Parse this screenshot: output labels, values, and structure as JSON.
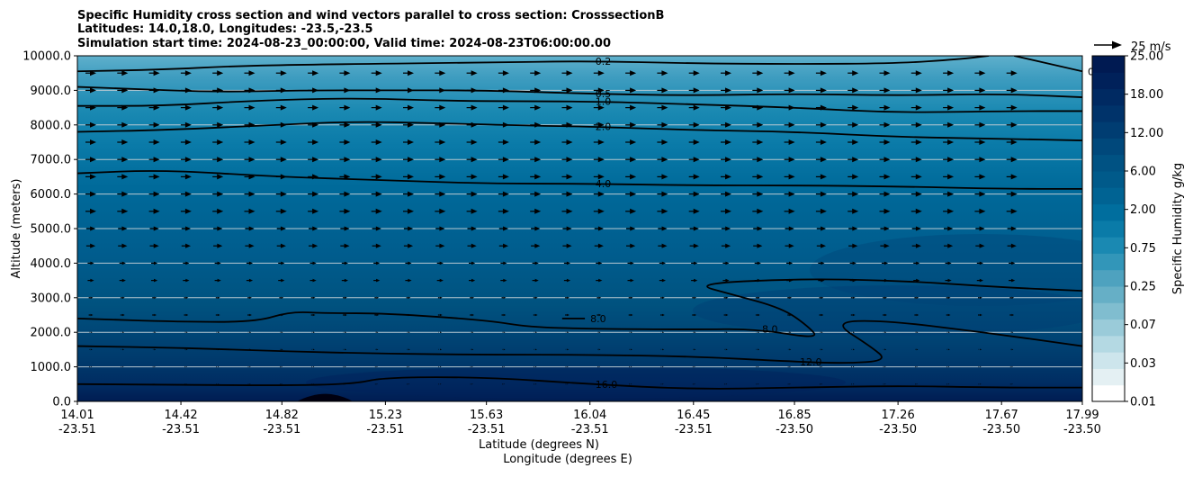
{
  "chart_data": {
    "type": "contour",
    "title_lines": [
      "Specific Humidity cross section and wind vectors parallel to cross section: CrosssectionB",
      "Latitudes: 14.0,18.0, Longitudes: -23.5,-23.5",
      "Simulation start time: 2024-08-23_00:00:00, Valid time: 2024-08-23T06:00:00.00"
    ],
    "ylabel": "Altitude (meters)",
    "xlabel_lines": [
      "Latitude (degrees N)",
      "Longitude (degrees E)"
    ],
    "ylim": [
      0,
      10000
    ],
    "yticks": [
      0,
      1000,
      2000,
      3000,
      4000,
      5000,
      6000,
      7000,
      8000,
      9000,
      10000
    ],
    "ytick_labels": [
      "0.0",
      "1000.0",
      "2000.0",
      "3000.0",
      "4000.0",
      "5000.0",
      "6000.0",
      "7000.0",
      "8000.0",
      "9000.0",
      "10000.0"
    ],
    "xlim": [
      14.01,
      17.99
    ],
    "xticks": [
      {
        "lat": "14.01",
        "lon": "-23.51"
      },
      {
        "lat": "14.42",
        "lon": "-23.51"
      },
      {
        "lat": "14.82",
        "lon": "-23.51"
      },
      {
        "lat": "15.23",
        "lon": "-23.51"
      },
      {
        "lat": "15.63",
        "lon": "-23.51"
      },
      {
        "lat": "16.04",
        "lon": "-23.51"
      },
      {
        "lat": "16.45",
        "lon": "-23.51"
      },
      {
        "lat": "16.85",
        "lon": "-23.50"
      },
      {
        "lat": "17.26",
        "lon": "-23.50"
      },
      {
        "lat": "17.67",
        "lon": "-23.50"
      },
      {
        "lat": "17.99",
        "lon": "-23.50"
      }
    ],
    "grid": "horizontal",
    "colorbar": {
      "label": "Specific Humidity g/kg",
      "tick_labels": [
        "0.01",
        "0.03",
        "0.07",
        "0.25",
        "0.75",
        "2.00",
        "6.00",
        "12.00",
        "18.00",
        "25.00"
      ],
      "colors": [
        "#ffffff",
        "#e4f0f3",
        "#cde5ec",
        "#b4d9e3",
        "#9acbd9",
        "#80bdcf",
        "#66afc6",
        "#4ea2bf",
        "#3296b9",
        "#1a89b2",
        "#0a7ba8",
        "#006e9e",
        "#006393",
        "#005a8a",
        "#005283",
        "#00487b",
        "#003d72",
        "#00336a",
        "#002a62",
        "#00215a",
        "#001a52"
      ]
    },
    "quiver_key": {
      "label": "25 m/s",
      "speed": 25
    },
    "contour_levels": [
      {
        "label": "0.2",
        "points": [
          [
            14.01,
            9550
          ],
          [
            14.35,
            9600
          ],
          [
            14.62,
            9700
          ],
          [
            14.95,
            9750
          ],
          [
            15.6,
            9800
          ],
          [
            16.04,
            9850
          ],
          [
            16.45,
            9780
          ],
          [
            16.85,
            9760
          ],
          [
            17.26,
            9780
          ],
          [
            17.5,
            9900
          ],
          [
            17.62,
            10000
          ]
        ]
      },
      {
        "label": "0.2",
        "points": [
          [
            17.72,
            10000
          ],
          [
            17.99,
            9550
          ]
        ]
      },
      {
        "label": "0.5",
        "points": [
          [
            14.01,
            9100
          ],
          [
            14.2,
            9050
          ],
          [
            14.55,
            8950
          ],
          [
            14.9,
            9000
          ],
          [
            15.3,
            9000
          ],
          [
            15.63,
            9000
          ],
          [
            16.04,
            8900
          ],
          [
            16.45,
            8850
          ],
          [
            16.85,
            8900
          ],
          [
            17.26,
            8850
          ],
          [
            17.67,
            8900
          ],
          [
            17.99,
            8800
          ]
        ]
      },
      {
        "label": "1.0",
        "points": [
          [
            14.01,
            8550
          ],
          [
            14.35,
            8550
          ],
          [
            14.7,
            8700
          ],
          [
            15.1,
            8780
          ],
          [
            15.45,
            8700
          ],
          [
            15.8,
            8680
          ],
          [
            16.04,
            8680
          ],
          [
            16.45,
            8600
          ],
          [
            16.85,
            8500
          ],
          [
            17.26,
            8350
          ],
          [
            17.67,
            8400
          ],
          [
            17.99,
            8400
          ]
        ]
      },
      {
        "label": "2.0",
        "points": [
          [
            14.01,
            7800
          ],
          [
            14.35,
            7850
          ],
          [
            14.8,
            8000
          ],
          [
            15.1,
            8100
          ],
          [
            15.45,
            8050
          ],
          [
            15.8,
            7980
          ],
          [
            16.04,
            7950
          ],
          [
            16.45,
            7850
          ],
          [
            16.85,
            7800
          ],
          [
            17.26,
            7650
          ],
          [
            17.67,
            7600
          ],
          [
            17.99,
            7550
          ]
        ]
      },
      {
        "label": "4.0",
        "points": [
          [
            14.01,
            6600
          ],
          [
            14.35,
            6700
          ],
          [
            14.8,
            6500
          ],
          [
            15.23,
            6400
          ],
          [
            15.63,
            6300
          ],
          [
            16.04,
            6300
          ],
          [
            16.45,
            6250
          ],
          [
            16.85,
            6250
          ],
          [
            17.26,
            6220
          ],
          [
            17.67,
            6150
          ],
          [
            17.99,
            6150
          ]
        ]
      },
      {
        "label": "8.0",
        "points": [
          [
            14.01,
            2400
          ],
          [
            14.42,
            2300
          ],
          [
            14.72,
            2300
          ],
          [
            14.85,
            2600
          ],
          [
            15.0,
            2550
          ],
          [
            15.23,
            2550
          ],
          [
            15.63,
            2350
          ],
          [
            15.8,
            2150
          ],
          [
            16.04,
            2100
          ],
          [
            16.45,
            2080
          ],
          [
            16.7,
            2100
          ],
          [
            16.95,
            1800
          ],
          [
            16.9,
            2200
          ],
          [
            16.8,
            2700
          ],
          [
            16.6,
            3100
          ],
          [
            16.45,
            3400
          ],
          [
            16.85,
            3550
          ],
          [
            17.26,
            3500
          ],
          [
            17.67,
            3300
          ],
          [
            17.99,
            3200
          ]
        ]
      },
      {
        "label": "8.0",
        "points": [
          [
            15.93,
            2400
          ],
          [
            16.02,
            2400
          ]
        ]
      },
      {
        "label": "12.0",
        "points": [
          [
            14.01,
            1600
          ],
          [
            14.42,
            1550
          ],
          [
            14.82,
            1450
          ],
          [
            15.23,
            1380
          ],
          [
            15.63,
            1350
          ],
          [
            16.04,
            1350
          ],
          [
            16.45,
            1300
          ],
          [
            16.85,
            1150
          ],
          [
            17.05,
            1100
          ],
          [
            17.22,
            1180
          ],
          [
            17.15,
            1600
          ],
          [
            17.0,
            2300
          ],
          [
            17.2,
            2350
          ],
          [
            17.6,
            2000
          ],
          [
            17.99,
            1600
          ]
        ]
      },
      {
        "label": "16.0",
        "points": [
          [
            14.01,
            500
          ],
          [
            14.42,
            480
          ],
          [
            14.82,
            460
          ],
          [
            15.1,
            500
          ],
          [
            15.23,
            700
          ],
          [
            15.63,
            700
          ],
          [
            16.04,
            500
          ],
          [
            16.45,
            350
          ],
          [
            16.85,
            400
          ],
          [
            17.26,
            450
          ],
          [
            17.67,
            400
          ],
          [
            17.99,
            400
          ]
        ]
      }
    ]
  }
}
